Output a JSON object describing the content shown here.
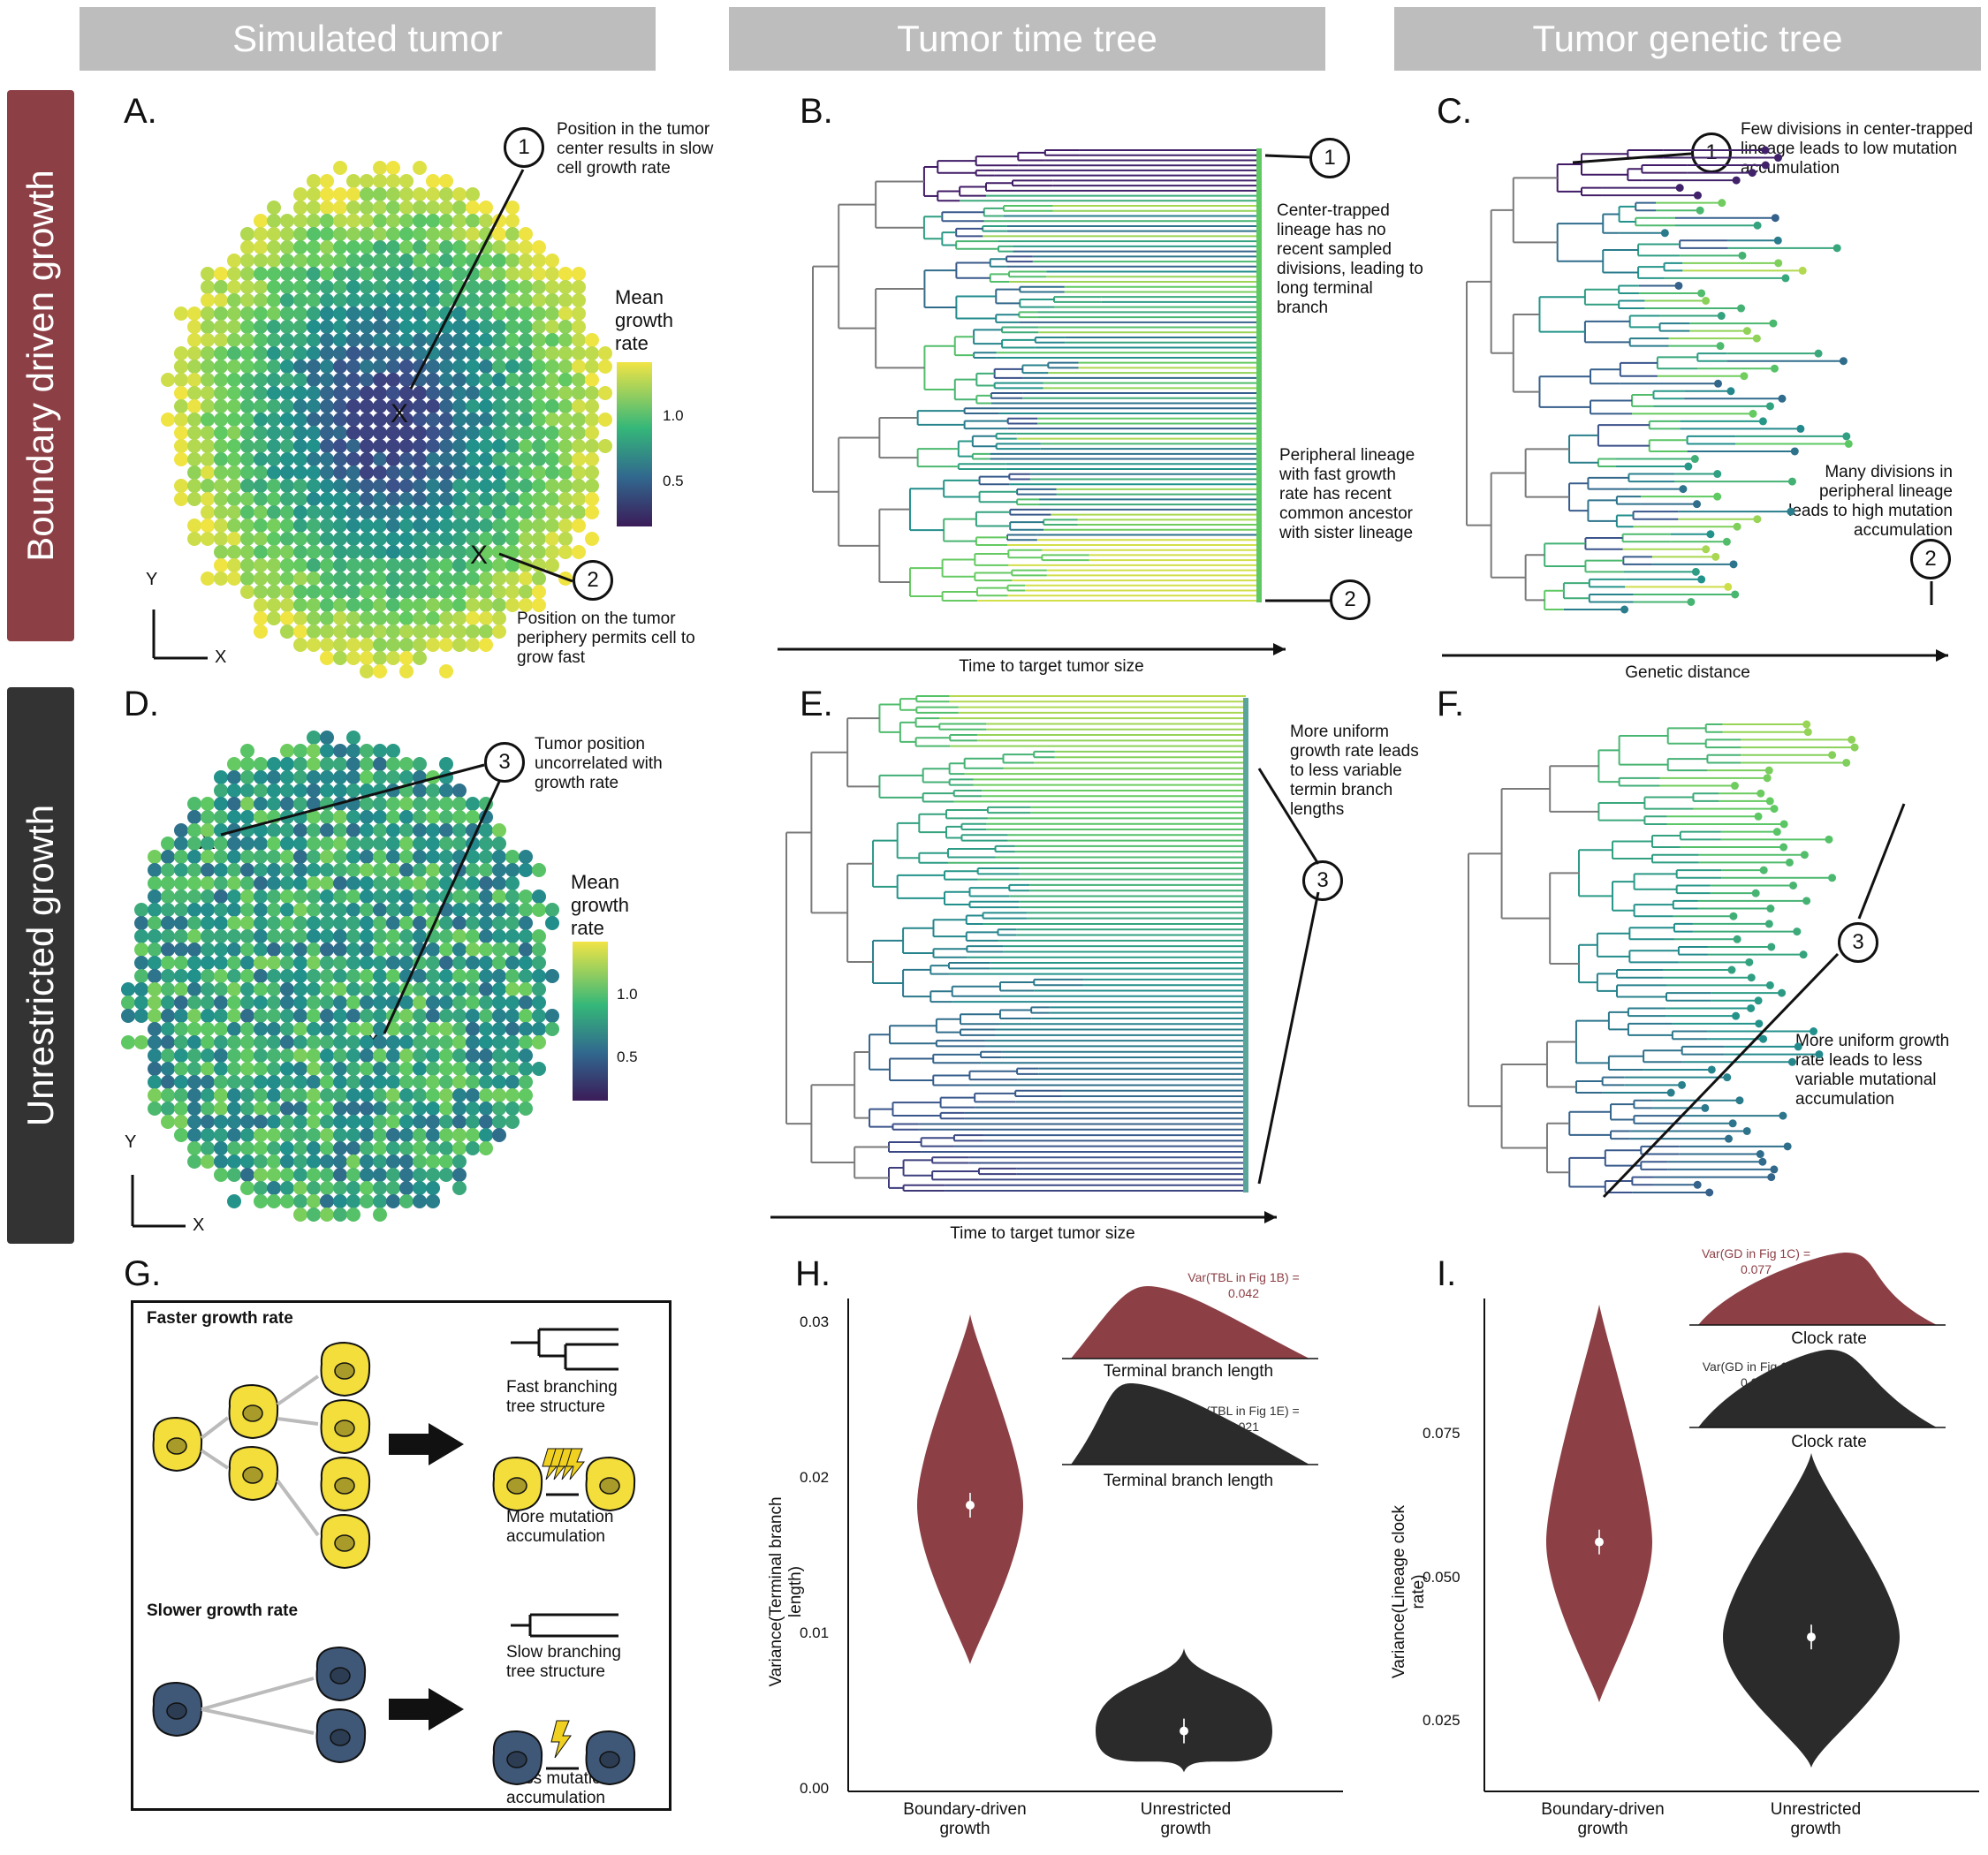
{
  "headers": [
    "Simulated tumor",
    "Tumor time tree",
    "Tumor genetic tree"
  ],
  "rows": [
    "Boundary driven growth",
    "Unrestricted growth"
  ],
  "colors": {
    "boundary": "#8c3f45",
    "unrestricted": "#333333",
    "header": "#bdbdbd",
    "cell_yellow": "#f3de3b",
    "cell_blue": "#3f5878"
  },
  "panelA": {
    "label": "A.",
    "note1": "Position in the tumor center results in slow cell growth rate",
    "note2": "Position on the tumor periphery permits cell to grow fast",
    "legend_title": "Mean growth rate",
    "legend_ticks": [
      "1.0",
      "0.5"
    ],
    "axis_y": "Y",
    "axis_x": "X",
    "marker": "X",
    "callouts": [
      "1",
      "2"
    ]
  },
  "panelB": {
    "label": "B.",
    "note1": "Center-trapped lineage has no recent sampled divisions, leading to long terminal branch",
    "note2": "Peripheral lineage with fast growth rate has recent common ancestor with sister lineage",
    "axis": "Time to target tumor size",
    "callouts": [
      "1",
      "2"
    ]
  },
  "panelC": {
    "label": "C.",
    "note1": "Few divisions in center-trapped lineage leads to low mutation accumulation",
    "note2": "Many divisions in peripheral lineage leads to high mutation accumulation",
    "axis": "Genetic distance",
    "callouts": [
      "1",
      "2"
    ]
  },
  "panelD": {
    "label": "D.",
    "note1": "Tumor position uncorrelated with growth rate",
    "legend_title": "Mean growth rate",
    "legend_ticks": [
      "1.0",
      "0.5"
    ],
    "axis_y": "Y",
    "axis_x": "X",
    "marker": "X",
    "callout": "3"
  },
  "panelE": {
    "label": "E.",
    "note1": "More uniform growth rate leads to less variable termin branch lengths",
    "axis": "Time to target tumor size",
    "callout": "3"
  },
  "panelF": {
    "label": "F.",
    "note1": "More uniform growth rate leads to less variable mutational accumulation",
    "callout": "3"
  },
  "panelG": {
    "label": "G.",
    "fast_title": "Faster growth rate",
    "fast_tree": "Fast branching tree structure",
    "fast_mut": "More mutation accumulation",
    "slow_title": "Slower growth rate",
    "slow_tree": "Slow branching tree structure",
    "slow_mut": "Less mutation accumulation"
  },
  "chart_data": [
    {
      "type": "violin",
      "panel": "H.",
      "ylabel": "Variance(Terminal branch length)",
      "categories": [
        "Boundary-driven growth",
        "Unrestricted growth"
      ],
      "yticks": [
        "0.00",
        "0.01",
        "0.02",
        "0.03"
      ],
      "ylim": [
        0,
        0.031
      ],
      "medians": [
        0.018,
        0.0038
      ],
      "ranges": [
        [
          0.008,
          0.03
        ],
        [
          0.0012,
          0.009
        ]
      ],
      "inset": {
        "top_label": "Var(TBL in Fig 1B) = 0.042",
        "bottom_label": "Var(TBL in Fig 1E) = 0.021",
        "xlabel": "Terminal branch length"
      }
    },
    {
      "type": "violin",
      "panel": "I.",
      "ylabel": "Variance(Lineage clock rate)",
      "categories": [
        "Boundary-driven growth",
        "Unrestricted growth"
      ],
      "yticks": [
        "0.025",
        "0.050",
        "0.075"
      ],
      "ylim": [
        0.012,
        0.095
      ],
      "medians": [
        0.054,
        0.038
      ],
      "ranges": [
        [
          0.027,
          0.094
        ],
        [
          0.016,
          0.069
        ]
      ],
      "inset": {
        "top_label": "Var(GD in Fig 1C) = 0.077",
        "bottom_label": "Var(GD in Fig 1F) = 0.053",
        "xlabel": "Clock rate"
      }
    }
  ]
}
